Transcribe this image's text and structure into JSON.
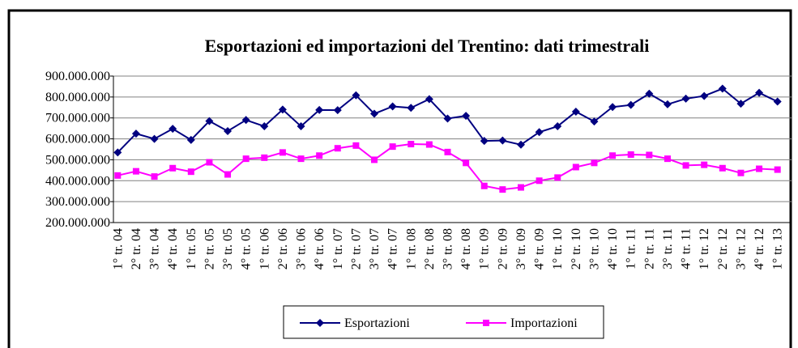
{
  "chart_data": {
    "type": "line",
    "title": "Esportazioni ed importazioni del Trentino: dati trimestrali",
    "categories": [
      "1° tr. 04",
      "2° tr. 04",
      "3° tr. 04",
      "4° tr. 04",
      "1° tr. 05",
      "2° tr. 05",
      "3° tr. 05",
      "4° tr. 05",
      "1° tr. 06",
      "2° tr. 06",
      "3° tr. 06",
      "4° tr. 06",
      "1° tr. 07",
      "2° tr. 07",
      "3° tr. 07",
      "4° tr. 07",
      "1° tr. 08",
      "2° tr. 08",
      "3° tr. 08",
      "4° tr. 08",
      "1° tr. 09",
      "2° tr. 09",
      "3° tr. 09",
      "4° tr. 09",
      "1° tr. 10",
      "2° tr. 10",
      "3° tr. 10",
      "4° tr. 10",
      "1° tr. 11",
      "2° tr. 11",
      "3° tr. 11",
      "4° tr. 11",
      "1° tr. 12",
      "2° tr. 12",
      "3° tr. 12",
      "4° tr. 12",
      "1° tr. 13"
    ],
    "series": [
      {
        "name": "Esportazioni",
        "color": "#000080",
        "marker": "diamond",
        "values": [
          535000000,
          625000000,
          600000000,
          648000000,
          595000000,
          685000000,
          637000000,
          690000000,
          660000000,
          740000000,
          660000000,
          738000000,
          737000000,
          808000000,
          720000000,
          755000000,
          748000000,
          790000000,
          697000000,
          710000000,
          590000000,
          592000000,
          572000000,
          632000000,
          660000000,
          730000000,
          683000000,
          752000000,
          762000000,
          816000000,
          765000000,
          792000000,
          805000000,
          840000000,
          768000000,
          820000000,
          778000000
        ]
      },
      {
        "name": "Importazioni",
        "color": "#ff00ff",
        "marker": "square",
        "values": [
          425000000,
          445000000,
          420000000,
          460000000,
          443000000,
          488000000,
          430000000,
          505000000,
          510000000,
          535000000,
          505000000,
          520000000,
          555000000,
          568000000,
          500000000,
          563000000,
          575000000,
          573000000,
          537000000,
          485000000,
          375000000,
          358000000,
          368000000,
          400000000,
          415000000,
          465000000,
          485000000,
          520000000,
          525000000,
          523000000,
          505000000,
          473000000,
          476000000,
          460000000,
          437000000,
          457000000,
          453000000
        ]
      }
    ],
    "ylim": [
      200000000,
      900000000
    ],
    "yticks": [
      {
        "value": 200000000,
        "label": "200.000.000"
      },
      {
        "value": 300000000,
        "label": "300.000.000"
      },
      {
        "value": 400000000,
        "label": "400.000.000"
      },
      {
        "value": 500000000,
        "label": "500.000.000"
      },
      {
        "value": 600000000,
        "label": "600.000.000"
      },
      {
        "value": 700000000,
        "label": "700.000.000"
      },
      {
        "value": 800000000,
        "label": "800.000.000"
      },
      {
        "value": 900000000,
        "label": "900.000.000"
      }
    ],
    "grid": true,
    "legend": "bottom"
  }
}
